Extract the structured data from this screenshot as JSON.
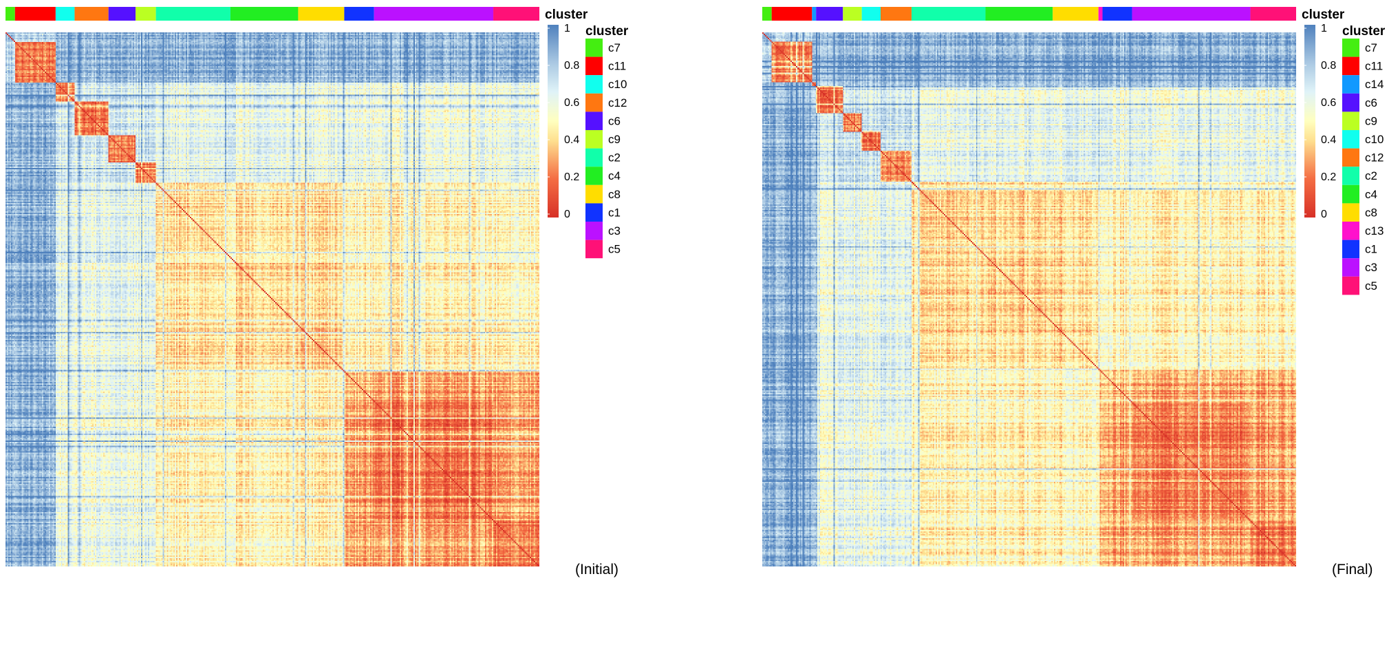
{
  "colorscale": {
    "stops": [
      {
        "v": 0.0,
        "color": "#d73027"
      },
      {
        "v": 0.2,
        "color": "#f46d43"
      },
      {
        "v": 0.4,
        "color": "#fee090"
      },
      {
        "v": 0.5,
        "color": "#ffffbf"
      },
      {
        "v": 0.65,
        "color": "#e0f3f8"
      },
      {
        "v": 0.8,
        "color": "#abc9e3"
      },
      {
        "v": 1.0,
        "color": "#4f81bd"
      }
    ]
  },
  "chart_data": [
    {
      "type": "heatmap",
      "caption": "(Initial)",
      "annotation_title": "cluster",
      "colorbar": {
        "ticks": [
          "1",
          "0.8",
          "0.6",
          "0.4",
          "0.2",
          "0"
        ],
        "range": [
          0,
          1
        ]
      },
      "legend_title": "cluster",
      "legend": [
        {
          "label": "c7",
          "color": "#44ee11"
        },
        {
          "label": "c11",
          "color": "#ff0000"
        },
        {
          "label": "c10",
          "color": "#11ffee"
        },
        {
          "label": "c12",
          "color": "#ff7711"
        },
        {
          "label": "c6",
          "color": "#5511ff"
        },
        {
          "label": "c9",
          "color": "#bbff22"
        },
        {
          "label": "c2",
          "color": "#11ffaa"
        },
        {
          "label": "c4",
          "color": "#22ee22"
        },
        {
          "label": "c8",
          "color": "#ffdd00"
        },
        {
          "label": "c1",
          "color": "#1133ff"
        },
        {
          "label": "c3",
          "color": "#bb11ff"
        },
        {
          "label": "c5",
          "color": "#ff1177"
        }
      ],
      "cluster_sizes": [
        {
          "label": "c7",
          "size": 7
        },
        {
          "label": "c11",
          "size": 30
        },
        {
          "label": "c10",
          "size": 14
        },
        {
          "label": "c12",
          "size": 25
        },
        {
          "label": "c6",
          "size": 20
        },
        {
          "label": "c9",
          "size": 15
        },
        {
          "label": "c2",
          "size": 55
        },
        {
          "label": "c4",
          "size": 50
        },
        {
          "label": "c8",
          "size": 34
        },
        {
          "label": "c1",
          "size": 22
        },
        {
          "label": "c3",
          "size": 88
        },
        {
          "label": "c5",
          "size": 34
        }
      ],
      "matrix_summary": "symmetric similarity matrix, diagonal = 0; c11, c12, c6 and c3/c5 blocks low (red), c7/c11 rows vs others high (blue)"
    },
    {
      "type": "heatmap",
      "caption": "(Final)",
      "annotation_title": "cluster",
      "colorbar": {
        "ticks": [
          "1",
          "0.8",
          "0.6",
          "0.4",
          "0.2",
          "0"
        ],
        "range": [
          0,
          1
        ]
      },
      "legend_title": "cluster",
      "legend": [
        {
          "label": "c7",
          "color": "#44ee11"
        },
        {
          "label": "c11",
          "color": "#ff0000"
        },
        {
          "label": "c14",
          "color": "#1199ff"
        },
        {
          "label": "c6",
          "color": "#5511ff"
        },
        {
          "label": "c9",
          "color": "#bbff22"
        },
        {
          "label": "c10",
          "color": "#11ffee"
        },
        {
          "label": "c12",
          "color": "#ff7711"
        },
        {
          "label": "c2",
          "color": "#11ffaa"
        },
        {
          "label": "c4",
          "color": "#22ee22"
        },
        {
          "label": "c8",
          "color": "#ffdd00"
        },
        {
          "label": "c13",
          "color": "#ff11cc"
        },
        {
          "label": "c1",
          "color": "#1133ff"
        },
        {
          "label": "c3",
          "color": "#bb11ff"
        },
        {
          "label": "c5",
          "color": "#ff1177"
        }
      ],
      "cluster_sizes": [
        {
          "label": "c7",
          "size": 7
        },
        {
          "label": "c11",
          "size": 30
        },
        {
          "label": "c14",
          "size": 3
        },
        {
          "label": "c6",
          "size": 20
        },
        {
          "label": "c9",
          "size": 14
        },
        {
          "label": "c10",
          "size": 14
        },
        {
          "label": "c12",
          "size": 23
        },
        {
          "label": "c2",
          "size": 55
        },
        {
          "label": "c4",
          "size": 50
        },
        {
          "label": "c8",
          "size": 34
        },
        {
          "label": "c13",
          "size": 3
        },
        {
          "label": "c1",
          "size": 22
        },
        {
          "label": "c3",
          "size": 88
        },
        {
          "label": "c5",
          "size": 34
        }
      ]
    }
  ]
}
